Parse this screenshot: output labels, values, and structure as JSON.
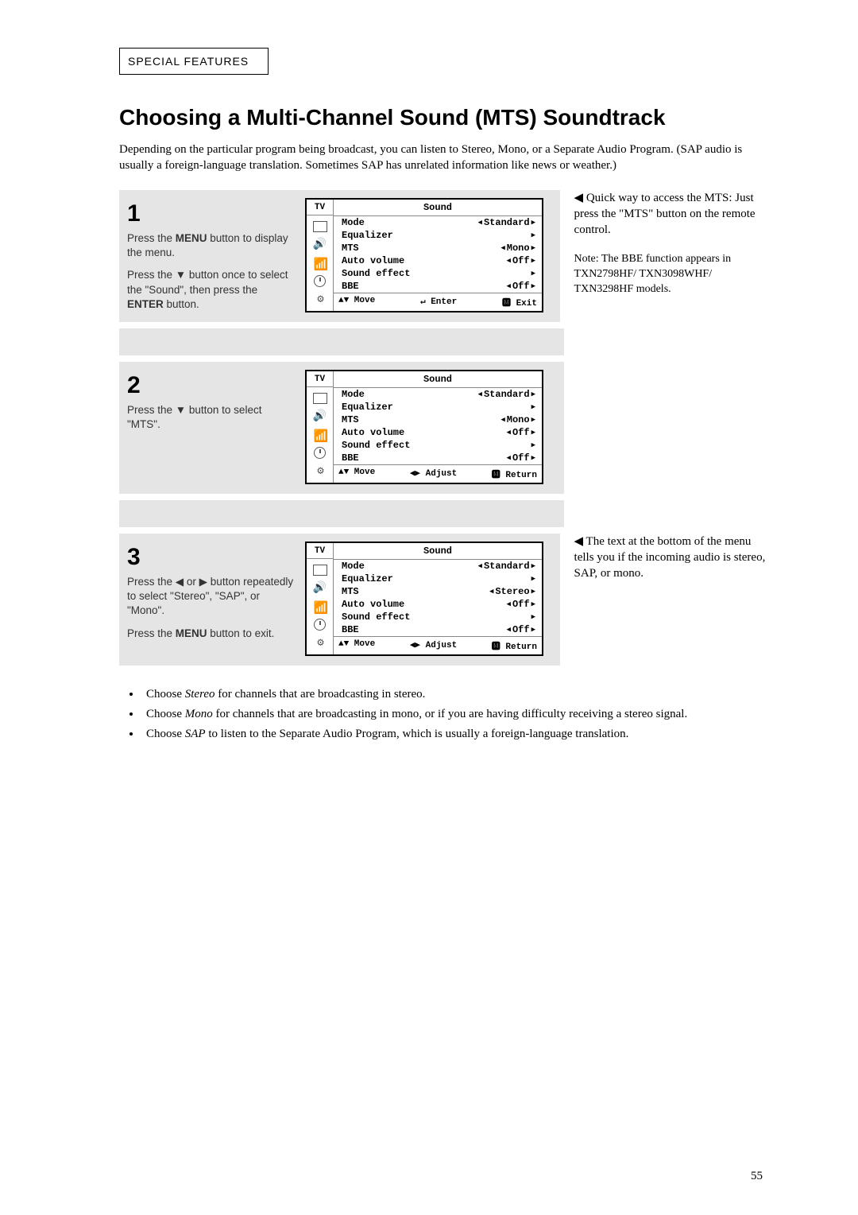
{
  "section_header": "SPECIAL FEATURES",
  "title": "Choosing a Multi-Channel Sound (MTS) Soundtrack",
  "intro": "Depending on the particular program being broadcast, you can listen to Stereo, Mono, or a Separate Audio Program. (SAP audio is usually a foreign-language translation. Sometimes SAP has unrelated information like news or weather.)",
  "steps": [
    {
      "num": "1",
      "text_a": "Press the <b>MENU</b> button to display the menu.",
      "text_b": "Press the ▼ button once to select the \"Sound\", then press the <b>ENTER</b> button.",
      "osd": {
        "title": "Sound",
        "rows": [
          {
            "label": "Mode",
            "left": "◀",
            "val": "Standard",
            "right": "▶"
          },
          {
            "label": "Equalizer",
            "left": "",
            "val": "",
            "right": "▶"
          },
          {
            "label": "MTS",
            "left": "◀",
            "val": "Mono",
            "right": "▶"
          },
          {
            "label": "Auto volume",
            "left": "◀",
            "val": "Off",
            "right": "▶"
          },
          {
            "label": "Sound effect",
            "left": "",
            "val": "",
            "right": "▶"
          },
          {
            "label": "BBE",
            "left": "◀",
            "val": "Off",
            "right": "▶"
          }
        ],
        "footer": [
          "▲▼ Move",
          "↵ Enter",
          "🅼 Exit"
        ]
      }
    },
    {
      "num": "2",
      "text_a": "Press the ▼ button to select \"MTS\".",
      "text_b": "",
      "osd": {
        "title": "Sound",
        "rows": [
          {
            "label": "Mode",
            "left": "◀",
            "val": "Standard",
            "right": "▶"
          },
          {
            "label": "Equalizer",
            "left": "",
            "val": "",
            "right": "▶"
          },
          {
            "label": "MTS",
            "left": "◀",
            "val": "Mono",
            "right": "▶"
          },
          {
            "label": "Auto volume",
            "left": "◀",
            "val": "Off",
            "right": "▶"
          },
          {
            "label": "Sound effect",
            "left": "",
            "val": "",
            "right": "▶"
          },
          {
            "label": "BBE",
            "left": "◀",
            "val": "Off",
            "right": "▶"
          }
        ],
        "footer": [
          "▲▼ Move",
          "◀▶ Adjust",
          "🅼 Return"
        ]
      }
    },
    {
      "num": "3",
      "text_a": "Press the ◀ or ▶ button repeatedly to select \"Stereo\", \"SAP\", or \"Mono\".",
      "text_b": "Press the <b>MENU</b> button to exit.",
      "osd": {
        "title": "Sound",
        "rows": [
          {
            "label": "Mode",
            "left": "◀",
            "val": "Standard",
            "right": "▶"
          },
          {
            "label": "Equalizer",
            "left": "",
            "val": "",
            "right": "▶"
          },
          {
            "label": "MTS",
            "left": "◀",
            "val": "Stereo",
            "right": "▶"
          },
          {
            "label": "Auto volume",
            "left": "◀",
            "val": "Off",
            "right": "▶"
          },
          {
            "label": "Sound effect",
            "left": "",
            "val": "",
            "right": "▶"
          },
          {
            "label": "BBE",
            "left": "◀",
            "val": "Off",
            "right": "▶"
          }
        ],
        "footer": [
          "▲▼ Move",
          "◀▶ Adjust",
          "🅼 Return"
        ]
      }
    }
  ],
  "side1_a": "◀  Quick way to access the MTS: Just press the \"MTS\" button on the remote control.",
  "side1_b": "Note: The BBE function appears in TXN2798HF/ TXN3098WHF/ TXN3298HF models.",
  "side3": "◀   The text at the bottom of the menu tells you if the incoming audio is stereo, SAP, or mono.",
  "bullets": [
    "Choose <i>Stereo</i> for channels that are broadcasting in stereo.",
    "Choose <i>Mono</i> for channels that are broadcasting in mono, or if you are having difficulty receiving a stereo signal.",
    "Choose <i>SAP</i> to listen to the Separate Audio Program, which is usually a foreign-language translation."
  ],
  "page": "55",
  "tv_label": "TV"
}
